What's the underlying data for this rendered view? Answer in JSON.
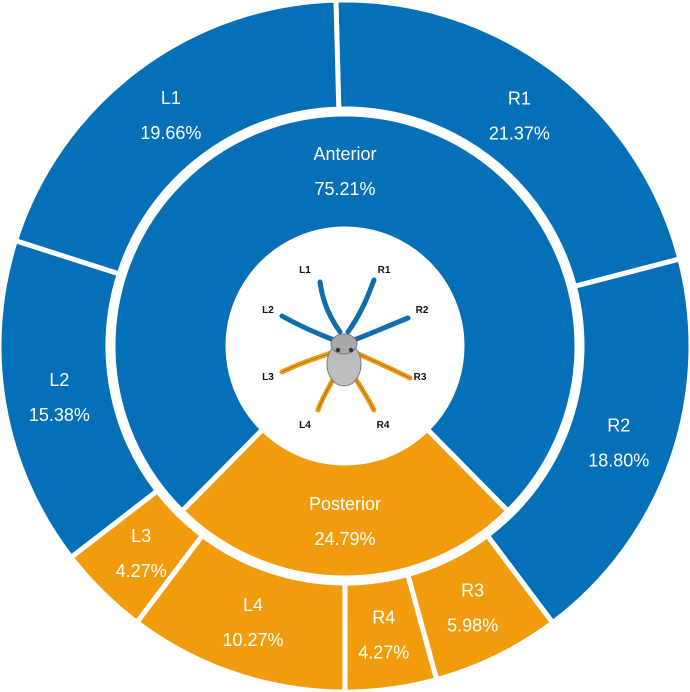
{
  "chart_data": {
    "type": "sunburst",
    "colors": {
      "anterior": "#0570b7",
      "posterior": "#f19c0c",
      "separator": "#ffffff"
    },
    "inner": [
      {
        "name": "Anterior",
        "value_label": "75.21%",
        "value": 75.21,
        "group": "anterior"
      },
      {
        "name": "Posterior",
        "value_label": "24.79%",
        "value": 24.79,
        "group": "posterior"
      }
    ],
    "outer": [
      {
        "name": "R1",
        "value_label": "21.37%",
        "value": 21.37,
        "group": "anterior"
      },
      {
        "name": "R2",
        "value_label": "18.80%",
        "value": 18.8,
        "group": "anterior"
      },
      {
        "name": "R3",
        "value_label": "5.98%",
        "value": 5.98,
        "group": "posterior"
      },
      {
        "name": "R4",
        "value_label": "4.27%",
        "value": 4.27,
        "group": "posterior"
      },
      {
        "name": "L4",
        "value_label": "10.27%",
        "value": 10.27,
        "group": "posterior"
      },
      {
        "name": "L3",
        "value_label": "4.27%",
        "value": 4.27,
        "group": "posterior"
      },
      {
        "name": "L2",
        "value_label": "15.38%",
        "value": 15.38,
        "group": "anterior"
      },
      {
        "name": "L1",
        "value_label": "19.66%",
        "value": 19.66,
        "group": "anterior"
      }
    ],
    "center_legs": {
      "labels": [
        "L1",
        "L2",
        "L3",
        "L4",
        "R1",
        "R2",
        "R3",
        "R4"
      ],
      "anterior_legs": [
        "L1",
        "L2",
        "R1",
        "R2"
      ],
      "posterior_legs": [
        "L3",
        "L4",
        "R3",
        "R4"
      ],
      "body_color": "#bdbdbd"
    }
  }
}
